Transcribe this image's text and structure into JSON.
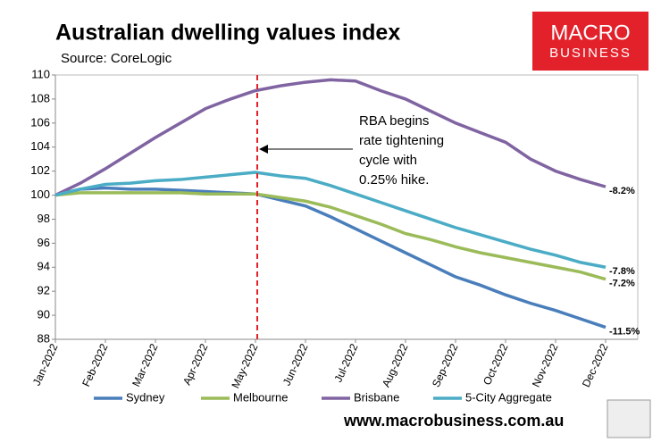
{
  "chart_data": {
    "type": "line",
    "title": "Australian dwelling values index",
    "subtitle": "Source: CoreLogic",
    "logo": [
      "MACRO",
      "BUSINESS"
    ],
    "footer": "www.macrobusiness.com.au",
    "categories": [
      "Jan-2022",
      null,
      "Feb-2022",
      null,
      "Mar-2022",
      null,
      "Apr-2022",
      null,
      "May-2022",
      null,
      "Jun-2022",
      null,
      "Jul-2022",
      null,
      "Aug-2022",
      null,
      "Sep-2022",
      null,
      "Oct-2022",
      null,
      "Nov-2022",
      null,
      "Dec-2022"
    ],
    "ylim": [
      88,
      110
    ],
    "yticks": [
      88,
      90,
      92,
      94,
      96,
      98,
      100,
      102,
      104,
      106,
      108,
      110
    ],
    "grid": false,
    "legend": "bottom",
    "event": {
      "category": 8,
      "text": [
        "RBA begins",
        "rate tightening",
        "cycle with",
        "0.25% hike."
      ]
    },
    "series": [
      {
        "name": "Sydney",
        "color": "#4a7ebb",
        "end_label": "-11.5%",
        "values": [
          100,
          100.5,
          100.6,
          100.5,
          100.5,
          100.4,
          100.3,
          100.2,
          100.1,
          99.6,
          99.1,
          98.2,
          97.2,
          96.2,
          95.2,
          94.2,
          93.2,
          92.5,
          91.7,
          91.0,
          90.4,
          89.7,
          89.0
        ]
      },
      {
        "name": "Melbourne",
        "color": "#9bbb59",
        "end_label": "-7.2%",
        "values": [
          100,
          100.2,
          100.2,
          100.2,
          100.2,
          100.2,
          100.1,
          100.1,
          100.1,
          99.8,
          99.5,
          99.0,
          98.3,
          97.6,
          96.8,
          96.3,
          95.7,
          95.2,
          94.8,
          94.4,
          94.0,
          93.6,
          93.0
        ]
      },
      {
        "name": "Brisbane",
        "color": "#8064a2",
        "end_label": "-8.2%",
        "values": [
          100,
          101.0,
          102.2,
          103.5,
          104.8,
          106.0,
          107.2,
          108.0,
          108.7,
          109.1,
          109.4,
          109.6,
          109.5,
          108.7,
          108.0,
          107.0,
          106.0,
          105.2,
          104.4,
          103.0,
          102.0,
          101.3,
          100.7
        ]
      },
      {
        "name": "5-City Aggregate",
        "color": "#4bacc6",
        "end_label": "-7.8%",
        "values": [
          100,
          100.5,
          100.9,
          101.0,
          101.2,
          101.3,
          101.5,
          101.7,
          101.9,
          101.6,
          101.4,
          100.8,
          100.1,
          99.4,
          98.7,
          98.0,
          97.3,
          96.7,
          96.1,
          95.5,
          95.0,
          94.4,
          94.0
        ]
      }
    ]
  }
}
